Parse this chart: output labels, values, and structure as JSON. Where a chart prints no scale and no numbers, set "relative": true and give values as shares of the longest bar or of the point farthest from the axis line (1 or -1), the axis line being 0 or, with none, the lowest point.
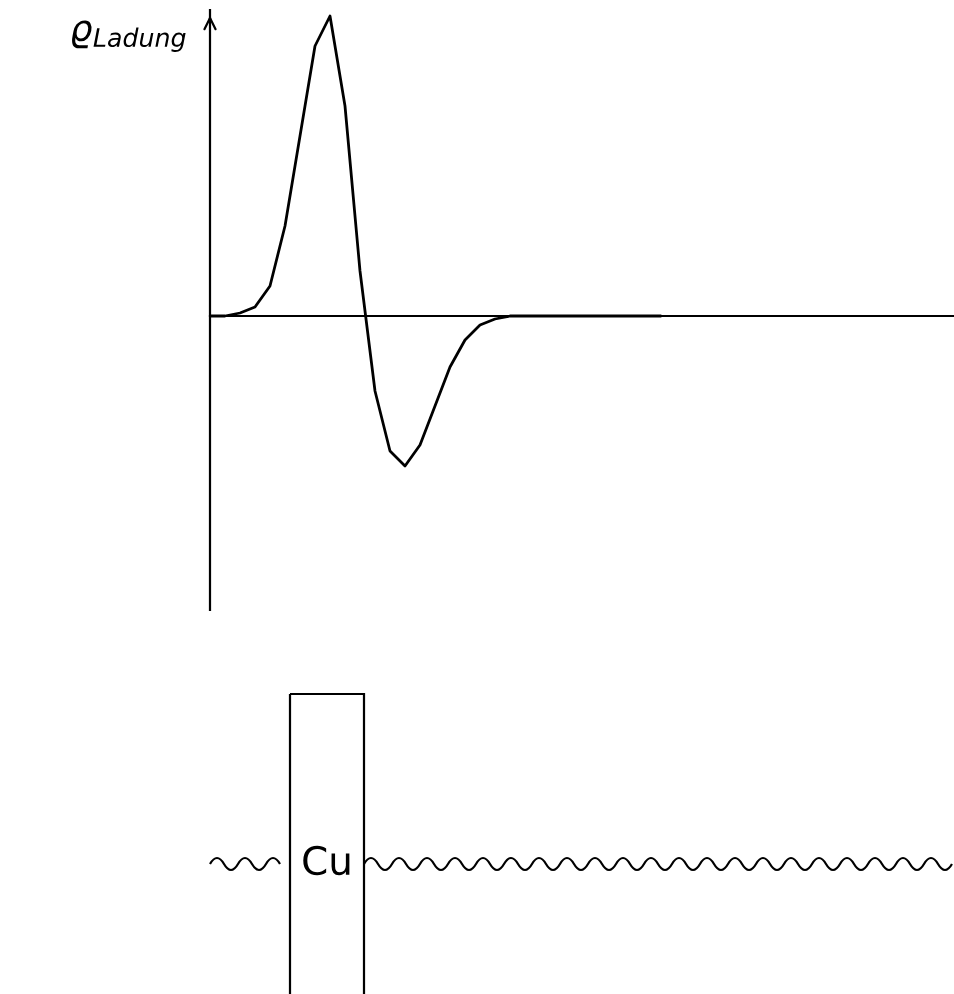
{
  "chart_data": {
    "type": "line",
    "relative": true,
    "ylabel": "ϱ$_{Ladung}$",
    "categories": [
      null,
      null,
      null,
      null,
      null,
      null,
      null,
      null,
      null,
      null,
      null,
      null,
      null,
      null,
      null,
      null,
      null,
      null,
      null,
      null,
      null,
      null,
      null,
      null,
      null,
      null,
      null,
      null,
      null,
      null,
      null
    ],
    "series": [
      {
        "color": "#000000",
        "values": [
          0,
          0,
          0.01,
          0.03,
          0.1,
          0.3,
          0.6,
          0.9,
          1,
          0.7,
          0.15,
          -0.25,
          -0.45,
          -0.5,
          -0.43,
          -0.3,
          -0.17,
          -0.08,
          -0.03,
          -0.01,
          0,
          0,
          0,
          0,
          0,
          0,
          0,
          0,
          0,
          0,
          0
        ]
      }
    ],
    "annotations": [
      "Cu"
    ],
    "grid": false,
    "legend": false,
    "marker": "none",
    "line_style": "solid"
  }
}
